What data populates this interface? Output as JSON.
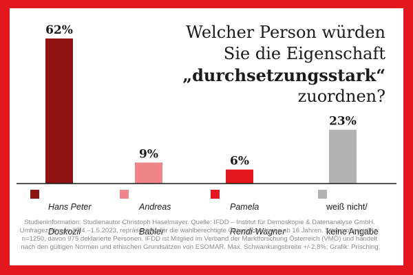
{
  "chart_data": {
    "type": "bar",
    "title_lines": [
      "Welcher Person würden",
      "Sie die Eigenschaft",
      "„durchsetzungsstark“",
      "zuordnen?"
    ],
    "categories": [
      "Hans Peter Doskozil",
      "Andreas Babler",
      "Pamela Rendi-Wagner",
      "weiß nicht/ keine Angabe"
    ],
    "legend_lines": [
      [
        "Hans Peter",
        "Doskozil"
      ],
      [
        "Andreas",
        "Babler"
      ],
      [
        "Pamela",
        "Rendi-Wagner"
      ],
      [
        "weiß nicht/",
        "keine Angabe"
      ]
    ],
    "values": [
      62,
      9,
      6,
      23
    ],
    "value_labels": [
      "62%",
      "9%",
      "6%",
      "23%"
    ],
    "colors": [
      "#8f1414",
      "#f0868a",
      "#e3171e",
      "#b3b3b3"
    ],
    "ylim": [
      0,
      62
    ],
    "xlabel": "",
    "ylabel": ""
  },
  "note": "Studieninformation: Studienautor Christoph Haselmayer. Quelle: IFDD – Institut für Demoskopie & Datenanalyse GmbH. Umfragezeitraum 29.4.–1.5.2023, repräsentativ für die wahlberechtigte ÖsterreicherInnen ab 16 Jahren. Stichprobengröße: n=1250, davon 975 deklarierte Personen. IFDD ist Mitglied im Verband der Marktforschung Österreich (VMÖ) und handelt nach den gültigen Normen und ethischen Grundsätzen von ESOMAR. Max. Schwankungsbreite +/-2,8%; Grafik: Prisching"
}
